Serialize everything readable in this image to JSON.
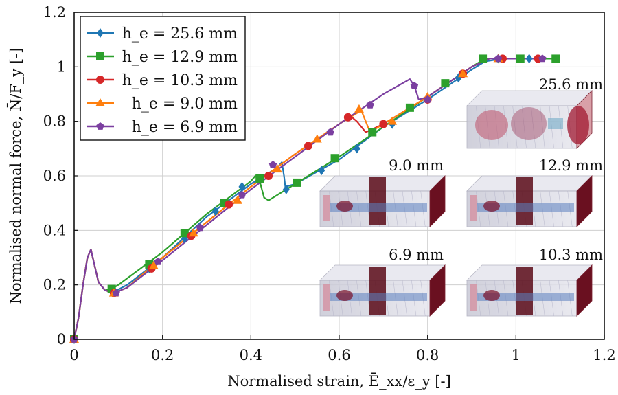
{
  "chart_data": {
    "type": "line",
    "xlabel": "Normalised strain, Ē_xx/ε_y [-]",
    "ylabel": "Normalised normal force, N̄/F_y [-]",
    "xlim": [
      0,
      1.2
    ],
    "ylim": [
      0,
      1.2
    ],
    "xticks": [
      "0",
      "0.2",
      "0.4",
      "0.6",
      "0.8",
      "1",
      "1.2"
    ],
    "yticks": [
      "0",
      "0.2",
      "0.4",
      "0.6",
      "0.8",
      "1",
      "1.2"
    ],
    "grid": true,
    "legend_position": "top-left",
    "series": [
      {
        "name": "h_e = 25.6 mm",
        "color": "#1f77b4",
        "marker": "diamond",
        "line": [
          [
            0,
            0
          ],
          [
            0.01,
            0.08
          ],
          [
            0.02,
            0.2
          ],
          [
            0.03,
            0.3
          ],
          [
            0.038,
            0.33
          ],
          [
            0.045,
            0.28
          ],
          [
            0.055,
            0.21
          ],
          [
            0.07,
            0.18
          ],
          [
            0.09,
            0.175
          ],
          [
            0.12,
            0.2
          ],
          [
            0.2,
            0.3
          ],
          [
            0.3,
            0.45
          ],
          [
            0.4,
            0.57
          ],
          [
            0.46,
            0.63
          ],
          [
            0.47,
            0.65
          ],
          [
            0.475,
            0.6
          ],
          [
            0.478,
            0.56
          ],
          [
            0.5,
            0.57
          ],
          [
            0.6,
            0.66
          ],
          [
            0.7,
            0.78
          ],
          [
            0.8,
            0.88
          ],
          [
            0.9,
            0.99
          ],
          [
            0.93,
            1.02
          ],
          [
            0.97,
            1.03
          ],
          [
            1.05,
            1.03
          ]
        ],
        "markers": [
          [
            0,
            0
          ],
          [
            0.09,
            0.18
          ],
          [
            0.17,
            0.26
          ],
          [
            0.25,
            0.37
          ],
          [
            0.32,
            0.47
          ],
          [
            0.38,
            0.56
          ],
          [
            0.48,
            0.55
          ],
          [
            0.56,
            0.62
          ],
          [
            0.64,
            0.7
          ],
          [
            0.72,
            0.79
          ],
          [
            0.8,
            0.88
          ],
          [
            0.87,
            0.96
          ],
          [
            0.96,
            1.03
          ],
          [
            1.03,
            1.03
          ]
        ]
      },
      {
        "name": "h_e = 12.9 mm",
        "color": "#2ca02c",
        "marker": "square",
        "line": [
          [
            0,
            0
          ],
          [
            0.01,
            0.08
          ],
          [
            0.02,
            0.2
          ],
          [
            0.03,
            0.3
          ],
          [
            0.038,
            0.33
          ],
          [
            0.045,
            0.28
          ],
          [
            0.055,
            0.21
          ],
          [
            0.07,
            0.18
          ],
          [
            0.085,
            0.185
          ],
          [
            0.1,
            0.2
          ],
          [
            0.2,
            0.32
          ],
          [
            0.3,
            0.46
          ],
          [
            0.4,
            0.58
          ],
          [
            0.41,
            0.6
          ],
          [
            0.42,
            0.58
          ],
          [
            0.43,
            0.52
          ],
          [
            0.44,
            0.51
          ],
          [
            0.5,
            0.57
          ],
          [
            0.6,
            0.67
          ],
          [
            0.7,
            0.78
          ],
          [
            0.8,
            0.89
          ],
          [
            0.9,
            1.0
          ],
          [
            0.93,
            1.03
          ],
          [
            1.09,
            1.03
          ]
        ],
        "markers": [
          [
            0,
            0
          ],
          [
            0.085,
            0.185
          ],
          [
            0.17,
            0.275
          ],
          [
            0.25,
            0.39
          ],
          [
            0.34,
            0.5
          ],
          [
            0.42,
            0.59
          ],
          [
            0.505,
            0.575
          ],
          [
            0.59,
            0.665
          ],
          [
            0.675,
            0.76
          ],
          [
            0.76,
            0.85
          ],
          [
            0.84,
            0.94
          ],
          [
            0.925,
            1.03
          ],
          [
            1.01,
            1.03
          ],
          [
            1.09,
            1.03
          ]
        ]
      },
      {
        "name": "h_e = 10.3 mm",
        "color": "#d62728",
        "marker": "circle",
        "line": [
          [
            0,
            0
          ],
          [
            0.01,
            0.08
          ],
          [
            0.02,
            0.2
          ],
          [
            0.03,
            0.3
          ],
          [
            0.038,
            0.33
          ],
          [
            0.045,
            0.28
          ],
          [
            0.055,
            0.21
          ],
          [
            0.07,
            0.18
          ],
          [
            0.09,
            0.17
          ],
          [
            0.12,
            0.19
          ],
          [
            0.2,
            0.3
          ],
          [
            0.3,
            0.43
          ],
          [
            0.4,
            0.56
          ],
          [
            0.5,
            0.68
          ],
          [
            0.6,
            0.79
          ],
          [
            0.625,
            0.82
          ],
          [
            0.64,
            0.8
          ],
          [
            0.65,
            0.78
          ],
          [
            0.66,
            0.76
          ],
          [
            0.7,
            0.79
          ],
          [
            0.8,
            0.89
          ],
          [
            0.9,
            1.0
          ],
          [
            0.94,
            1.03
          ],
          [
            1.05,
            1.03
          ]
        ],
        "markers": [
          [
            0,
            0
          ],
          [
            0.09,
            0.17
          ],
          [
            0.175,
            0.26
          ],
          [
            0.265,
            0.38
          ],
          [
            0.35,
            0.495
          ],
          [
            0.44,
            0.6
          ],
          [
            0.53,
            0.71
          ],
          [
            0.62,
            0.815
          ],
          [
            0.7,
            0.79
          ],
          [
            0.8,
            0.88
          ],
          [
            0.88,
            0.975
          ],
          [
            0.97,
            1.03
          ],
          [
            1.05,
            1.03
          ]
        ]
      },
      {
        "name": "h_e = 9.0 mm",
        "color": "#ff7f0e",
        "marker": "triangle",
        "line": [
          [
            0,
            0
          ],
          [
            0.01,
            0.08
          ],
          [
            0.02,
            0.2
          ],
          [
            0.03,
            0.3
          ],
          [
            0.038,
            0.33
          ],
          [
            0.045,
            0.28
          ],
          [
            0.055,
            0.21
          ],
          [
            0.07,
            0.18
          ],
          [
            0.09,
            0.17
          ],
          [
            0.12,
            0.19
          ],
          [
            0.2,
            0.3
          ],
          [
            0.3,
            0.43
          ],
          [
            0.4,
            0.56
          ],
          [
            0.5,
            0.68
          ],
          [
            0.6,
            0.79
          ],
          [
            0.65,
            0.84
          ],
          [
            0.66,
            0.8
          ],
          [
            0.67,
            0.76
          ],
          [
            0.7,
            0.79
          ],
          [
            0.8,
            0.89
          ],
          [
            0.9,
            1.0
          ],
          [
            0.94,
            1.03
          ],
          [
            1.05,
            1.03
          ]
        ],
        "markers": [
          [
            0,
            0
          ],
          [
            0.09,
            0.17
          ],
          [
            0.18,
            0.27
          ],
          [
            0.27,
            0.39
          ],
          [
            0.37,
            0.51
          ],
          [
            0.46,
            0.625
          ],
          [
            0.55,
            0.735
          ],
          [
            0.645,
            0.845
          ],
          [
            0.72,
            0.8
          ],
          [
            0.8,
            0.89
          ],
          [
            0.88,
            0.975
          ],
          [
            0.96,
            1.03
          ]
        ]
      },
      {
        "name": "h_e = 6.9 mm",
        "color": "#7b3fa0",
        "marker": "pentagon",
        "line": [
          [
            0,
            0
          ],
          [
            0.01,
            0.08
          ],
          [
            0.02,
            0.2
          ],
          [
            0.03,
            0.3
          ],
          [
            0.038,
            0.33
          ],
          [
            0.045,
            0.28
          ],
          [
            0.055,
            0.21
          ],
          [
            0.07,
            0.18
          ],
          [
            0.09,
            0.17
          ],
          [
            0.12,
            0.19
          ],
          [
            0.2,
            0.29
          ],
          [
            0.3,
            0.42
          ],
          [
            0.4,
            0.55
          ],
          [
            0.5,
            0.67
          ],
          [
            0.6,
            0.79
          ],
          [
            0.7,
            0.9
          ],
          [
            0.76,
            0.955
          ],
          [
            0.77,
            0.93
          ],
          [
            0.78,
            0.88
          ],
          [
            0.8,
            0.89
          ],
          [
            0.9,
            1.0
          ],
          [
            0.94,
            1.03
          ],
          [
            1.05,
            1.03
          ]
        ],
        "markers": [
          [
            0,
            0
          ],
          [
            0.095,
            0.17
          ],
          [
            0.19,
            0.285
          ],
          [
            0.285,
            0.41
          ],
          [
            0.38,
            0.53
          ],
          [
            0.45,
            0.64
          ],
          [
            0.58,
            0.76
          ],
          [
            0.67,
            0.86
          ],
          [
            0.77,
            0.93
          ],
          [
            0.8,
            0.88
          ],
          [
            0.96,
            1.03
          ],
          [
            1.06,
            1.03
          ]
        ]
      }
    ],
    "insets": [
      {
        "label": "25.6 mm",
        "style": "coarse"
      },
      {
        "label": "9.0 mm",
        "style": "dark"
      },
      {
        "label": "12.9 mm",
        "style": "dark"
      },
      {
        "label": "6.9 mm",
        "style": "dark"
      },
      {
        "label": "10.3 mm",
        "style": "dark"
      }
    ]
  }
}
